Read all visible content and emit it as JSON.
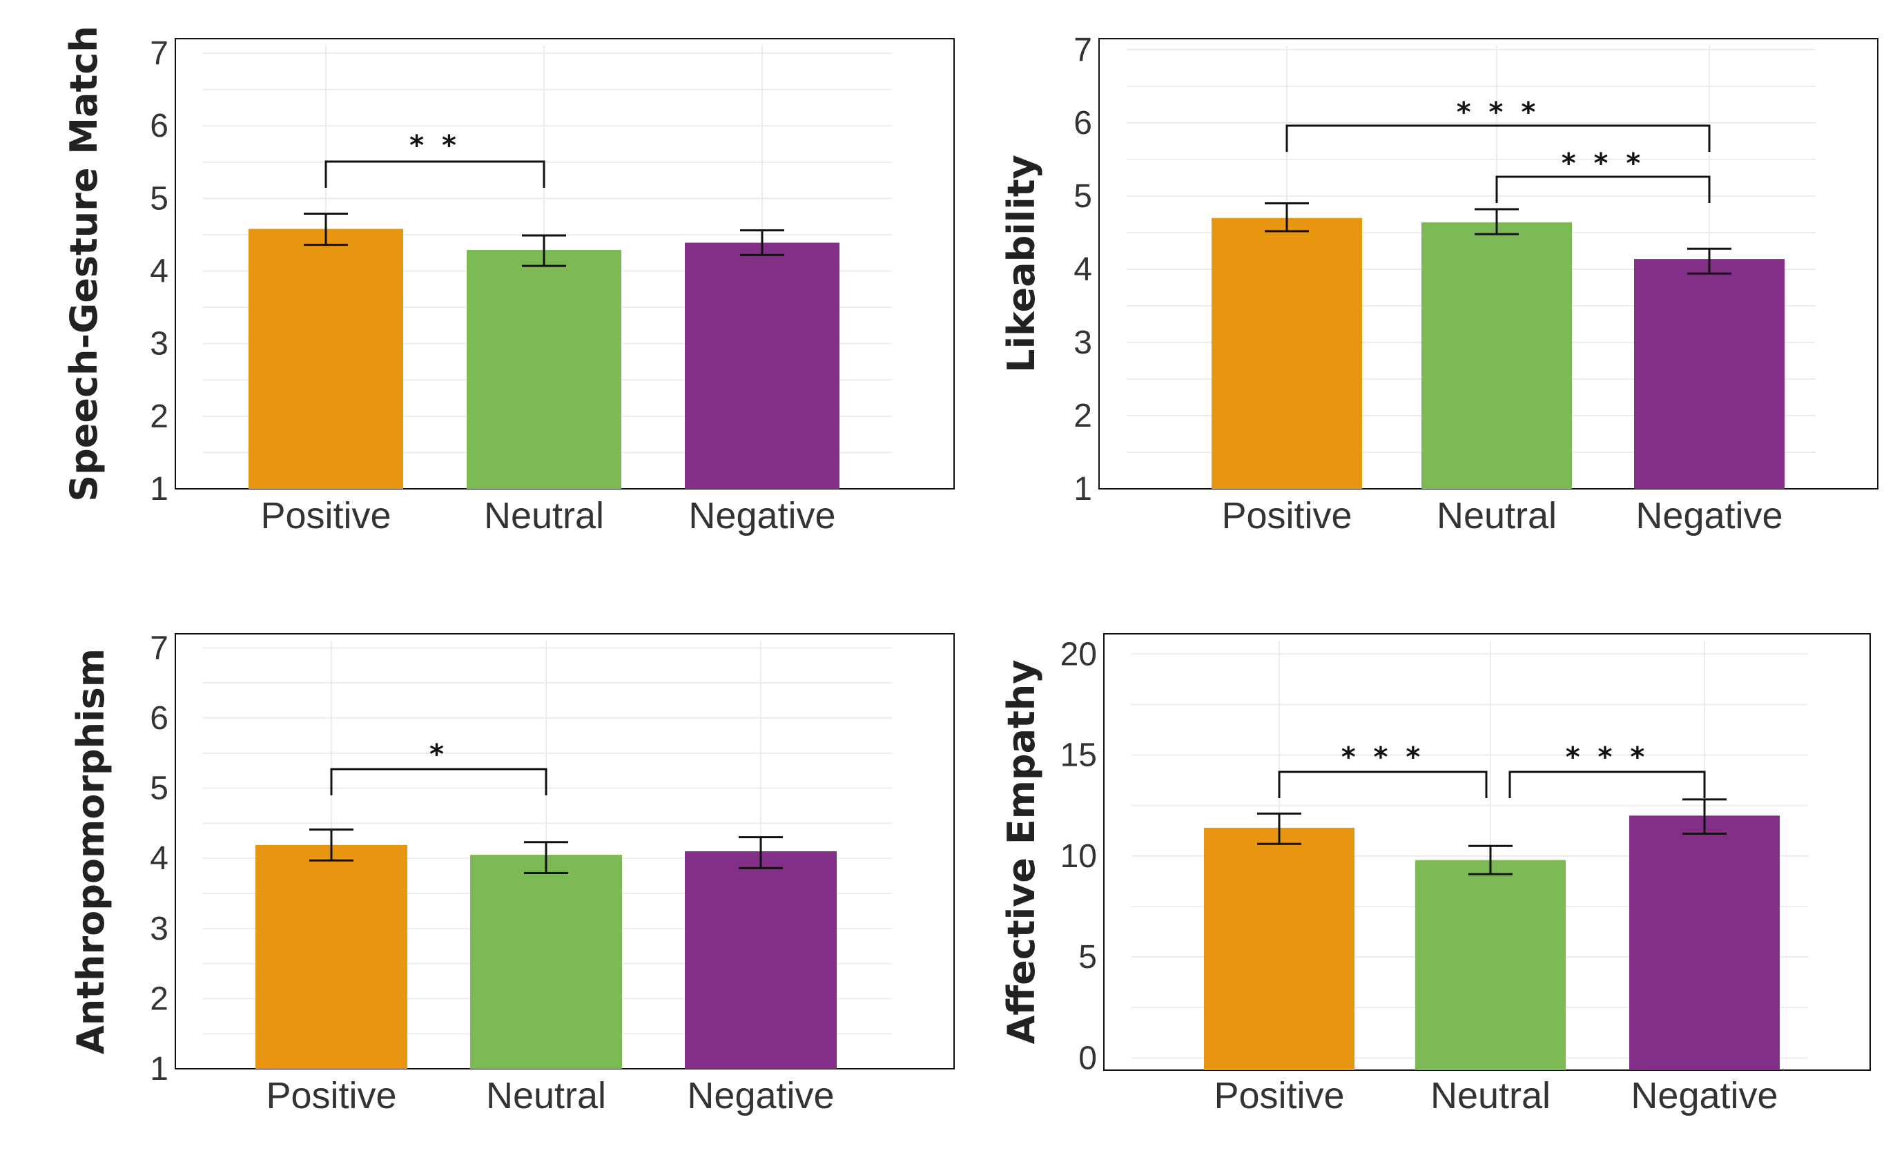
{
  "figure": {
    "colors": {
      "positive": "#E8960F",
      "neutral": "#7DB955",
      "negative": "#832F87"
    }
  },
  "chart_data": [
    {
      "type": "bar",
      "ylabel": "Speech-Gesture Match",
      "categories": [
        "Positive",
        "Neutral",
        "Negative"
      ],
      "values": [
        4.58,
        4.29,
        4.39
      ],
      "error_low": [
        4.36,
        4.07,
        4.22
      ],
      "error_high": [
        4.79,
        4.49,
        4.56
      ],
      "ylim": [
        1,
        7.2
      ],
      "yticks": [
        1,
        2,
        3,
        4,
        5,
        6,
        7
      ],
      "ytick_labels": [
        "1",
        "2",
        "3",
        "4",
        "5",
        "6",
        "7"
      ],
      "significance": [
        {
          "from": "Positive",
          "to": "Neutral",
          "label": "* *"
        }
      ]
    },
    {
      "type": "bar",
      "ylabel": "Likeability",
      "categories": [
        "Positive",
        "Neutral",
        "Negative"
      ],
      "values": [
        4.7,
        4.64,
        4.14
      ],
      "error_low": [
        4.52,
        4.48,
        3.94
      ],
      "error_high": [
        4.9,
        4.82,
        4.28
      ],
      "ylim": [
        1,
        7.15
      ],
      "yticks": [
        1,
        2,
        3,
        4,
        5,
        6,
        7
      ],
      "ytick_labels": [
        "1",
        "2",
        "3",
        "4",
        "5",
        "6",
        "7"
      ],
      "significance": [
        {
          "from": "Positive",
          "to": "Negative",
          "label": "* * *"
        },
        {
          "from": "Neutral",
          "to": "Negative",
          "label": "* * *"
        }
      ]
    },
    {
      "type": "bar",
      "ylabel": "Anthropomorphism",
      "categories": [
        "Positive",
        "Neutral",
        "Negative"
      ],
      "values": [
        4.19,
        4.05,
        4.1
      ],
      "error_low": [
        3.97,
        3.79,
        3.86
      ],
      "error_high": [
        4.41,
        4.23,
        4.3
      ],
      "ylim": [
        1,
        7.2
      ],
      "yticks": [
        1,
        2,
        3,
        4,
        5,
        6,
        7
      ],
      "ytick_labels": [
        "1",
        "2",
        "3",
        "4",
        "5",
        "6",
        "7"
      ],
      "significance": [
        {
          "from": "Positive",
          "to": "Neutral",
          "label": "*"
        }
      ]
    },
    {
      "type": "bar",
      "ylabel": "Affective Empathy",
      "categories": [
        "Positive",
        "Neutral",
        "Negative"
      ],
      "values": [
        11.4,
        9.8,
        12.0
      ],
      "error_low": [
        10.6,
        9.1,
        11.1
      ],
      "error_high": [
        12.1,
        10.5,
        12.8
      ],
      "ylim": [
        -0.6,
        21
      ],
      "yticks": [
        0,
        5,
        10,
        15,
        20
      ],
      "ytick_labels": [
        "0",
        "5",
        "10",
        "15",
        "20"
      ],
      "significance": [
        {
          "from": "Positive",
          "to": "Neutral",
          "label": "* * *"
        },
        {
          "from": "Neutral",
          "to": "Negative",
          "label": "* * *"
        }
      ]
    }
  ]
}
